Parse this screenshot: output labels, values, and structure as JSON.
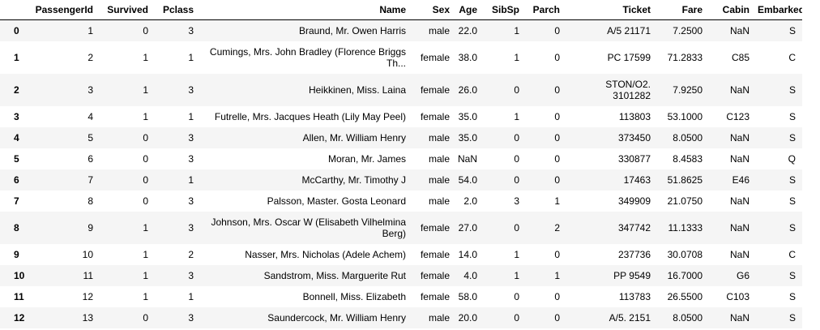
{
  "table": {
    "index_header": "",
    "columns": [
      "PassengerId",
      "Survived",
      "Pclass",
      "Name",
      "Sex",
      "Age",
      "SibSp",
      "Parch",
      "Ticket",
      "Fare",
      "Cabin",
      "Embarked"
    ],
    "rows": [
      {
        "index": "0",
        "cells": [
          "1",
          "0",
          "3",
          "Braund, Mr. Owen Harris",
          "male",
          "22.0",
          "1",
          "0",
          "A/5 21171",
          "7.2500",
          "NaN",
          "S"
        ]
      },
      {
        "index": "1",
        "cells": [
          "2",
          "1",
          "1",
          "Cumings, Mrs. John Bradley (Florence Briggs Th...",
          "female",
          "38.0",
          "1",
          "0",
          "PC 17599",
          "71.2833",
          "C85",
          "C"
        ]
      },
      {
        "index": "2",
        "cells": [
          "3",
          "1",
          "3",
          "Heikkinen, Miss. Laina",
          "female",
          "26.0",
          "0",
          "0",
          "STON/O2. 3101282",
          "7.9250",
          "NaN",
          "S"
        ]
      },
      {
        "index": "3",
        "cells": [
          "4",
          "1",
          "1",
          "Futrelle, Mrs. Jacques Heath (Lily May Peel)",
          "female",
          "35.0",
          "1",
          "0",
          "113803",
          "53.1000",
          "C123",
          "S"
        ]
      },
      {
        "index": "4",
        "cells": [
          "5",
          "0",
          "3",
          "Allen, Mr. William Henry",
          "male",
          "35.0",
          "0",
          "0",
          "373450",
          "8.0500",
          "NaN",
          "S"
        ]
      },
      {
        "index": "5",
        "cells": [
          "6",
          "0",
          "3",
          "Moran, Mr. James",
          "male",
          "NaN",
          "0",
          "0",
          "330877",
          "8.4583",
          "NaN",
          "Q"
        ]
      },
      {
        "index": "6",
        "cells": [
          "7",
          "0",
          "1",
          "McCarthy, Mr. Timothy J",
          "male",
          "54.0",
          "0",
          "0",
          "17463",
          "51.8625",
          "E46",
          "S"
        ]
      },
      {
        "index": "7",
        "cells": [
          "8",
          "0",
          "3",
          "Palsson, Master. Gosta Leonard",
          "male",
          "2.0",
          "3",
          "1",
          "349909",
          "21.0750",
          "NaN",
          "S"
        ]
      },
      {
        "index": "8",
        "cells": [
          "9",
          "1",
          "3",
          "Johnson, Mrs. Oscar W (Elisabeth Vilhelmina Berg)",
          "female",
          "27.0",
          "0",
          "2",
          "347742",
          "11.1333",
          "NaN",
          "S"
        ]
      },
      {
        "index": "9",
        "cells": [
          "10",
          "1",
          "2",
          "Nasser, Mrs. Nicholas (Adele Achem)",
          "female",
          "14.0",
          "1",
          "0",
          "237736",
          "30.0708",
          "NaN",
          "C"
        ]
      },
      {
        "index": "10",
        "cells": [
          "11",
          "1",
          "3",
          "Sandstrom, Miss. Marguerite Rut",
          "female",
          "4.0",
          "1",
          "1",
          "PP 9549",
          "16.7000",
          "G6",
          "S"
        ]
      },
      {
        "index": "11",
        "cells": [
          "12",
          "1",
          "1",
          "Bonnell, Miss. Elizabeth",
          "female",
          "58.0",
          "0",
          "0",
          "113783",
          "26.5500",
          "C103",
          "S"
        ]
      },
      {
        "index": "12",
        "cells": [
          "13",
          "0",
          "3",
          "Saundercock, Mr. William Henry",
          "male",
          "20.0",
          "0",
          "0",
          "A/5. 2151",
          "8.0500",
          "NaN",
          "S"
        ]
      }
    ]
  }
}
